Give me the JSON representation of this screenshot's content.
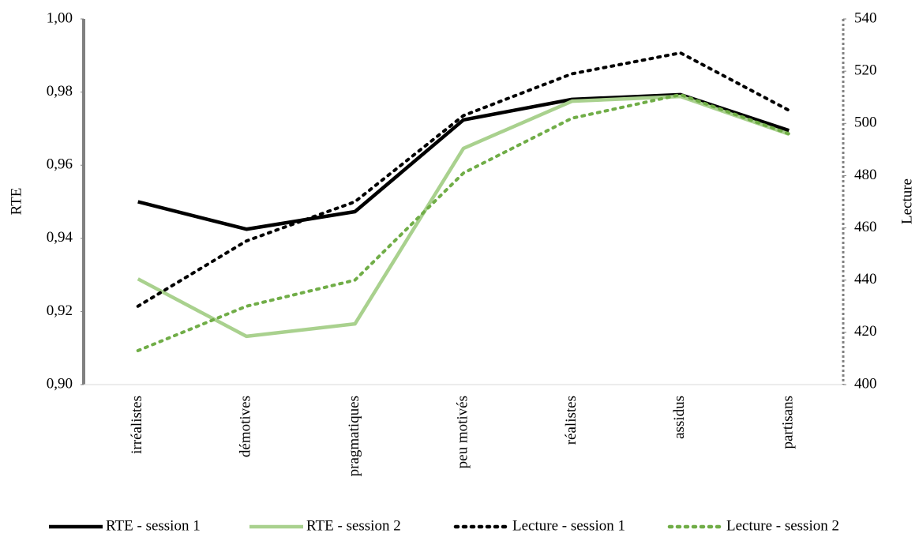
{
  "chart_data": {
    "type": "line",
    "y_label": "RTE",
    "y2_label": "Lecture",
    "categories": [
      "irréalistes",
      "démotives",
      "pragmatiques",
      "peu motivés",
      "réalistes",
      "assidus",
      "partisans"
    ],
    "ylim": [
      0.9,
      1.0
    ],
    "yticks": [
      {
        "value": 0.9,
        "label": "0,90"
      },
      {
        "value": 0.92,
        "label": "0,92"
      },
      {
        "value": 0.94,
        "label": "0,94"
      },
      {
        "value": 0.96,
        "label": "0,96"
      },
      {
        "value": 0.98,
        "label": "0,98"
      },
      {
        "value": 1.0,
        "label": "1,00"
      }
    ],
    "y2lim": [
      400,
      540
    ],
    "y2ticks": [
      400,
      420,
      440,
      460,
      480,
      500,
      520,
      540
    ],
    "grid": false,
    "legend": "bottom",
    "series": [
      {
        "name": "RTE - session 1",
        "color": "#000000",
        "style": "solid",
        "values": [
          0.95,
          0.9425,
          0.9473,
          0.9724,
          0.978,
          0.9793,
          0.9695
        ]
      },
      {
        "name": "RTE - session 2",
        "color": "#a9d18e",
        "style": "solid",
        "values": [
          0.9289,
          0.9132,
          0.9166,
          0.9646,
          0.9775,
          0.9788,
          0.9685
        ]
      },
      {
        "name": "Lecture - session 1",
        "color": "#000000",
        "style": "dotted",
        "axis": "y2",
        "values": [
          430,
          455,
          470,
          503,
          519,
          527,
          505
        ]
      },
      {
        "name": "Lecture - session 2",
        "color": "#70ad47",
        "style": "dotted",
        "axis": "y2",
        "values": [
          413,
          430,
          440,
          481,
          502,
          511,
          496
        ]
      }
    ]
  }
}
